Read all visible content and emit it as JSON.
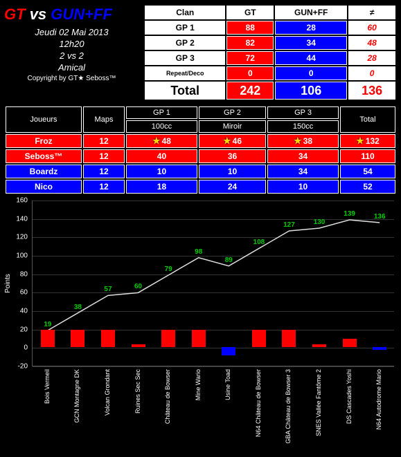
{
  "header": {
    "team_a": "GT",
    "vs": "vs",
    "team_b": "GUN+FF",
    "date": "Jeudi 02 Mai 2013",
    "time": "12h20",
    "mode": "2 vs 2",
    "type": "Amical",
    "copyright": "Copyright by GT★ Seboss™"
  },
  "colors": {
    "team_a": "#ff0000",
    "team_b": "#0000ff",
    "bg": "#000000",
    "text": "#ffffff",
    "line": "#dddddd",
    "point_label": "#00cc00"
  },
  "clan": {
    "col_labels": [
      "Clan",
      "GT",
      "GUN+FF",
      "≠"
    ],
    "rows": [
      {
        "label": "GP 1",
        "a": 88,
        "b": 28,
        "diff": 60
      },
      {
        "label": "GP 2",
        "a": 82,
        "b": 34,
        "diff": 48
      },
      {
        "label": "GP 3",
        "a": 72,
        "b": 44,
        "diff": 28
      },
      {
        "label": "Repeat/Deco",
        "a": 0,
        "b": 0,
        "diff": 0
      }
    ],
    "total": {
      "label": "Total",
      "a": 242,
      "b": 106,
      "diff": 136
    }
  },
  "players": {
    "header1": [
      "Joueurs",
      "Maps",
      "GP 1",
      "GP 2",
      "GP 3",
      "Total"
    ],
    "header2": [
      "",
      "",
      "100cc",
      "Miroir",
      "150cc",
      ""
    ],
    "rows": [
      {
        "name": "Froz",
        "team": "a",
        "maps": 12,
        "gp": [
          48,
          46,
          38
        ],
        "stars": [
          true,
          true,
          true
        ],
        "total": 132,
        "total_star": true
      },
      {
        "name": "Seboss™",
        "team": "a",
        "maps": 12,
        "gp": [
          40,
          36,
          34
        ],
        "stars": [
          false,
          false,
          false
        ],
        "total": 110,
        "total_star": false
      },
      {
        "name": "Boardz",
        "team": "b",
        "maps": 12,
        "gp": [
          10,
          10,
          34
        ],
        "stars": [
          false,
          false,
          false
        ],
        "total": 54,
        "total_star": false
      },
      {
        "name": "Nico",
        "team": "b",
        "maps": 12,
        "gp": [
          18,
          24,
          10
        ],
        "stars": [
          false,
          false,
          false
        ],
        "total": 52,
        "total_star": false
      }
    ]
  },
  "chart": {
    "ylabel": "Points",
    "ymin": -20,
    "ymax": 160,
    "ytick_step": 20,
    "tracks": [
      "Bois Vermeil",
      "GCN Montagne DK",
      "Volcan Grondant",
      "Ruines Sec Sec",
      "Château de Bowser",
      "Mine Wario",
      "Usine Toad",
      "N64 Château de Bowser",
      "GBA Château de Bowser 3",
      "SNES Vallée Fantôme 2",
      "DS Cascades Yoshi",
      "N64 Autodrome Mario"
    ],
    "bar_values": [
      19,
      19,
      19,
      3,
      19,
      19,
      -9,
      19,
      19,
      3,
      9,
      -3
    ],
    "cumulative": [
      19,
      38,
      57,
      60,
      79,
      98,
      89,
      108,
      127,
      130,
      139,
      136
    ]
  }
}
